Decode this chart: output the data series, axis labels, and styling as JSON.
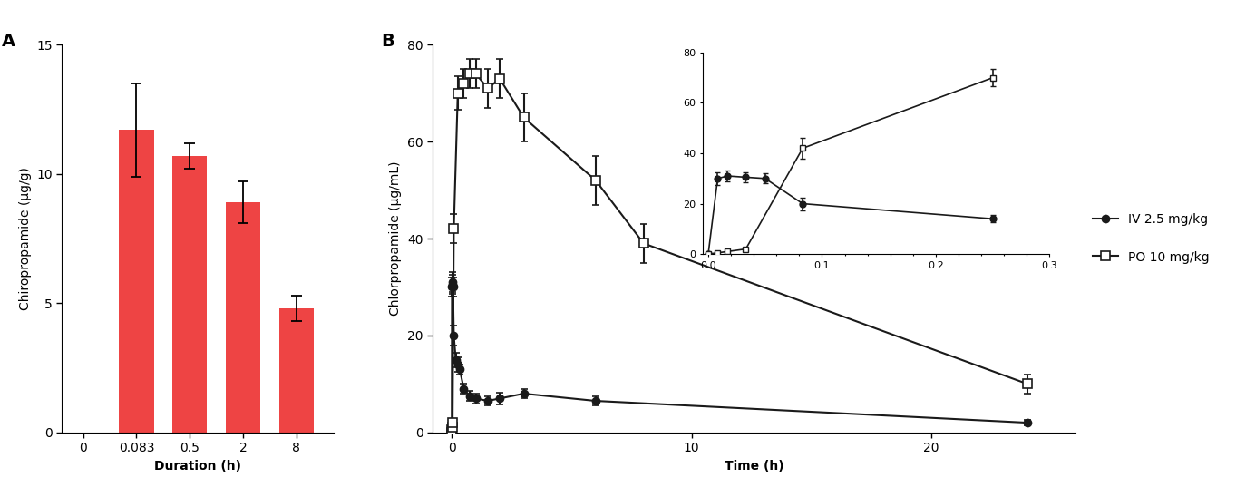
{
  "panel_A": {
    "categories": [
      "0",
      "0.083",
      "0.5",
      "2",
      "8"
    ],
    "values": [
      0,
      11.7,
      10.7,
      8.9,
      4.8
    ],
    "errors": [
      0,
      1.8,
      0.5,
      0.8,
      0.5
    ],
    "bar_color": "#EE4444",
    "ylabel": "Chiropropamide (µg/g)",
    "xlabel": "Duration (h)",
    "ylim": [
      0,
      15
    ],
    "yticks": [
      0,
      5,
      10,
      15
    ],
    "label": "A"
  },
  "panel_B": {
    "iv_x": [
      0.0,
      0.0083,
      0.017,
      0.033,
      0.05,
      0.083,
      0.167,
      0.25,
      0.333,
      0.5,
      0.75,
      1.0,
      1.5,
      2.0,
      3.0,
      6.0,
      24.0
    ],
    "iv_y": [
      0.0,
      30.0,
      31.0,
      30.5,
      30.0,
      20.0,
      15.0,
      14.0,
      13.0,
      9.0,
      7.5,
      7.0,
      6.5,
      7.0,
      8.0,
      6.5,
      2.0
    ],
    "iv_yerr": [
      0.0,
      2.0,
      2.0,
      2.0,
      2.0,
      2.0,
      1.5,
      1.5,
      1.0,
      1.0,
      1.0,
      1.0,
      1.0,
      1.2,
      1.0,
      1.0,
      0.5
    ],
    "po_x": [
      0.0,
      0.0083,
      0.017,
      0.033,
      0.083,
      0.25,
      0.5,
      0.75,
      1.0,
      1.5,
      2.0,
      3.0,
      6.0,
      8.0,
      24.0
    ],
    "po_y": [
      0.0,
      0.5,
      1.0,
      2.0,
      42.0,
      70.0,
      72.0,
      74.0,
      74.0,
      71.0,
      73.0,
      65.0,
      52.0,
      39.0,
      10.0
    ],
    "po_yerr": [
      0.0,
      0.0,
      0.0,
      0.0,
      3.0,
      3.5,
      3.0,
      3.0,
      3.0,
      4.0,
      4.0,
      5.0,
      5.0,
      4.0,
      2.0
    ],
    "ylabel": "Chlorpropamide (µg/mL)",
    "xlabel": "Time (h)",
    "ylim": [
      0,
      80
    ],
    "yticks": [
      0,
      20,
      40,
      60,
      80
    ],
    "label": "B",
    "iv_label": "IV 2.5 mg/kg",
    "po_label": "PO 10 mg/kg",
    "inset": {
      "iv_x": [
        0.0,
        0.0083,
        0.017,
        0.033,
        0.05,
        0.083,
        0.25
      ],
      "iv_y": [
        0.0,
        30.0,
        31.0,
        30.5,
        30.0,
        20.0,
        14.0
      ],
      "iv_yerr": [
        0.0,
        2.5,
        2.0,
        2.0,
        2.0,
        2.5,
        1.5
      ],
      "po_x": [
        0.0,
        0.0083,
        0.017,
        0.033,
        0.083,
        0.25
      ],
      "po_y": [
        0.0,
        0.5,
        1.0,
        2.0,
        42.0,
        70.0
      ],
      "po_yerr": [
        0.0,
        0.0,
        0.0,
        0.0,
        4.0,
        3.5
      ],
      "xlim": [
        -0.005,
        0.3
      ],
      "ylim": [
        0,
        80
      ],
      "xticks": [
        0.0,
        0.1,
        0.2,
        0.3
      ],
      "yticks": [
        0,
        20,
        40,
        60,
        80
      ]
    }
  },
  "line_color": "#1a1a1a",
  "background_color": "#ffffff"
}
